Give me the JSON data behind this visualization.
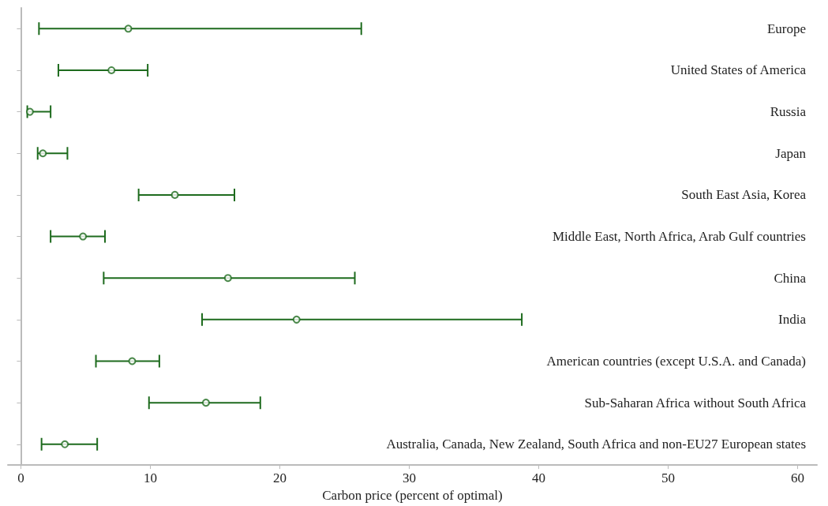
{
  "chart_data": {
    "type": "scatter",
    "orientation": "horizontal",
    "xlabel": "Carbon price (percent of optimal)",
    "categories": [
      "Europe",
      "United States of America",
      "Russia",
      "Japan",
      "South East Asia, Korea",
      "Middle East, North Africa, Arab Gulf countries",
      "China",
      "India",
      "American countries (except U.S.A. and Canada)",
      "Sub-Saharan Africa without South Africa",
      "Australia, Canada, New Zealand, South Africa and non-EU27 European states"
    ],
    "series": [
      {
        "color": "#1e6b1e",
        "values": [
          8.3,
          7.0,
          0.7,
          1.7,
          11.9,
          4.8,
          16.0,
          21.3,
          8.6,
          14.3,
          3.4
        ],
        "errors": [
          [
            1.4,
            26.3
          ],
          [
            2.9,
            9.8
          ],
          [
            0.5,
            2.3
          ],
          [
            1.3,
            3.6
          ],
          [
            9.1,
            16.5
          ],
          [
            2.3,
            6.5
          ],
          [
            6.4,
            25.8
          ],
          [
            14.0,
            38.7
          ],
          [
            5.8,
            10.7
          ],
          [
            9.9,
            18.5
          ],
          [
            1.6,
            5.9
          ]
        ]
      }
    ],
    "xlim": [
      -1,
      61.5
    ],
    "xticks": [
      0,
      10,
      20,
      30,
      40,
      50,
      60
    ],
    "marker": "circle"
  }
}
